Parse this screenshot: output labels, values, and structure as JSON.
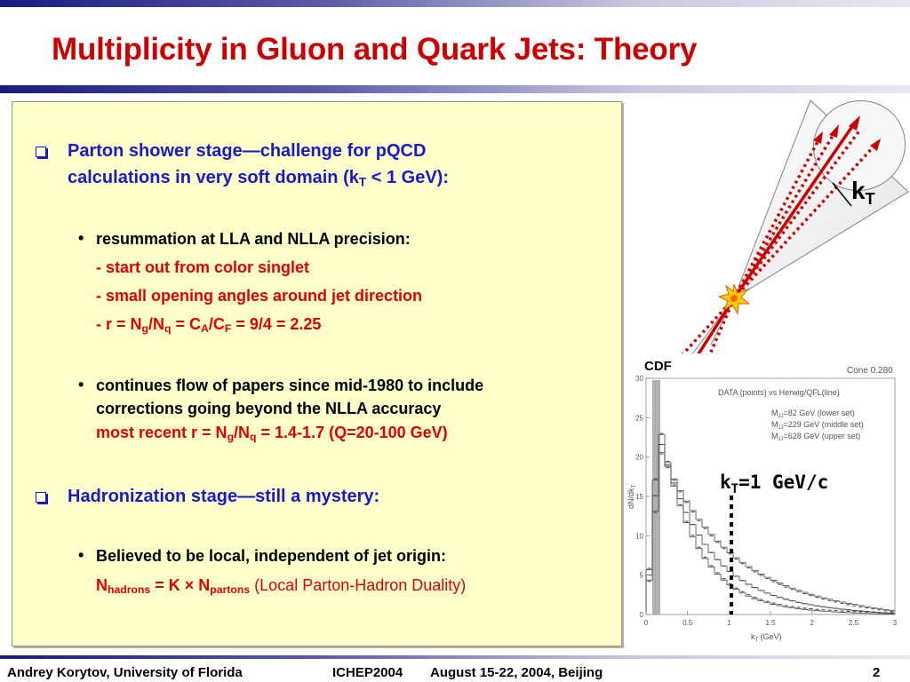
{
  "title": "Multiplicity in Gluon and Quark Jets: Theory",
  "bullets": {
    "b1_line1": "Parton shower stage—challenge for pQCD",
    "b1_line2_a": "calculations in very soft domain (k",
    "b1_line2_sub": "T",
    "b1_line2_b": " < 1 GeV):",
    "s1_text": "resummation at LLA and NLLA precision:",
    "s1_d1": "-  start out from color singlet",
    "s1_d2": "-  small opening angles around jet direction",
    "s1_d3_a": "-  r = N",
    "s1_d3_sub1": "g",
    "s1_d3_b": "/N",
    "s1_d3_sub2": "q",
    "s1_d3_c": " = C",
    "s1_d3_sub3": "A",
    "s1_d3_d": "/C",
    "s1_d3_sub4": "F",
    "s1_d3_e": " = 9/4 = 2.25",
    "s2_line1": "continues flow of papers since mid-1980 to include",
    "s2_line2": "corrections going beyond the NLLA accuracy",
    "s2_line3_a": "most recent r = N",
    "s2_line3_sub1": "g",
    "s2_line3_b": "/N",
    "s2_line3_sub2": "q",
    "s2_line3_c": " = 1.4-1.7 (Q=20-100 GeV)",
    "b2_text": "Hadronization stage—still a mystery:",
    "s3_text": "Believed to be local, independent of jet origin:",
    "s3_line2_a": "N",
    "s3_line2_sub1": "hadrons",
    "s3_line2_b": " = K × N",
    "s3_line2_sub2": "partons",
    "s3_line2_c": " (Local Parton-Hadron Duality)"
  },
  "diagram": {
    "kt_label": "k",
    "kt_sub": "T"
  },
  "plot": {
    "cdf_label": "CDF",
    "cone_label": "Cone 0.280",
    "legend_title": "DATA (points) vs Herwig/QFL(line)",
    "legend_l1": "M",
    "legend_l1_sub": "JJ",
    "legend_l1_rest": "=82 GeV (lower set)",
    "legend_l2": "M",
    "legend_l2_sub": "JJ",
    "legend_l2_rest": "=229 GeV (middle set)",
    "legend_l3": "M",
    "legend_l3_sub": "JJ",
    "legend_l3_rest": "=628 GeV (upper set)",
    "ylabel": "dN/dk",
    "ylabel_sub": "T",
    "xlabel": "k",
    "xlabel_sub": "T",
    "xlabel_unit": " (GeV)",
    "kt_marker_a": "k",
    "kt_marker_sub": "T",
    "kt_marker_b": "=1 GeV/c",
    "x_ticks": [
      "0",
      "0.5",
      "1",
      "1.5",
      "2",
      "2.5",
      "3"
    ],
    "y_ticks": [
      "0",
      "5",
      "10",
      "15",
      "20",
      "25",
      "30"
    ]
  },
  "footer": {
    "author": "Andrey Korytov, University of Florida",
    "conference": "ICHEP2004",
    "dates": "August 15-22, 2004, Beijing",
    "page": "2"
  },
  "colors": {
    "title": "#cc0000",
    "blue_text": "#1a1ac8",
    "red_text": "#e00000",
    "box_bg": "#ffffcc"
  }
}
